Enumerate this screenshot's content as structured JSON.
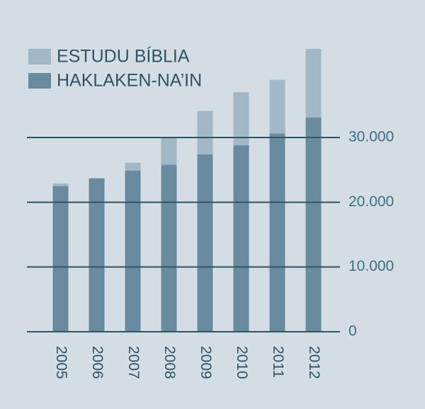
{
  "chart_data": {
    "type": "stacked_bar",
    "categories": [
      "2005",
      "2006",
      "2007",
      "2008",
      "2009",
      "2010",
      "2011",
      "2012"
    ],
    "series": [
      {
        "name": "ESTUDU BÍBLIA",
        "color": "#a3b8c6",
        "values": [
          400,
          0,
          1200,
          4100,
          6700,
          8200,
          8300,
          10600
        ]
      },
      {
        "name": "HAKLAKEN-NA’IN",
        "color": "#6a8aa0",
        "values": [
          22500,
          23700,
          24900,
          25800,
          27400,
          28800,
          30600,
          33100
        ]
      }
    ],
    "ylim": [
      0,
      45000
    ],
    "yticks": [
      0,
      {
        "value": 10000,
        "label": "10.000"
      },
      {
        "value": 20000,
        "label": "20.000"
      },
      {
        "value": 30000,
        "label": "30.000"
      }
    ],
    "grid": true,
    "legend": "top-left"
  }
}
